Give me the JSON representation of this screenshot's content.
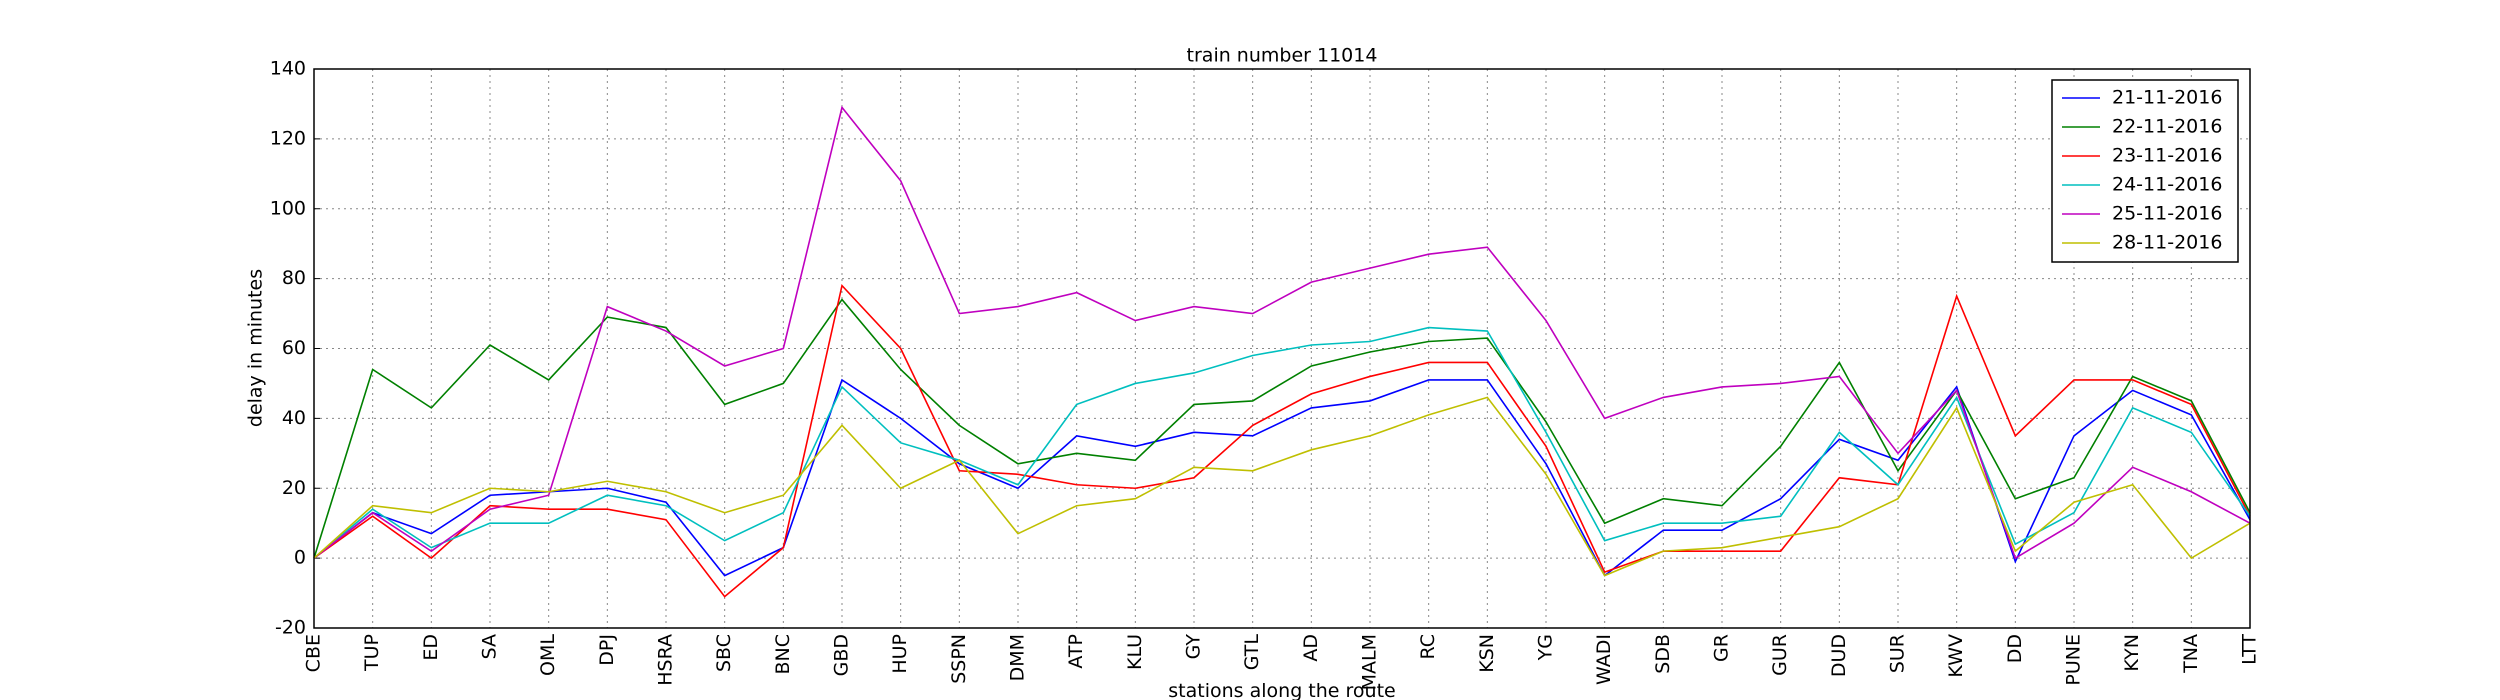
{
  "chart_data": {
    "type": "line",
    "title": "train number 11014",
    "x_label": "stations along the route",
    "y_label": "delay in minutes",
    "categories": [
      "CBE",
      "TUP",
      "ED",
      "SA",
      "OML",
      "DPJ",
      "HSRA",
      "SBC",
      "BNC",
      "GBD",
      "HUP",
      "SSPN",
      "DMM",
      "ATP",
      "KLU",
      "GY",
      "GTL",
      "AD",
      "MALM",
      "RC",
      "KSN",
      "YG",
      "WADI",
      "SDB",
      "GR",
      "GUR",
      "DUD",
      "SUR",
      "KWV",
      "DD",
      "PUNE",
      "KYN",
      "TNA",
      "LTT"
    ],
    "series": [
      {
        "name": "21-11-2016",
        "color": "#0000ff",
        "values": [
          0,
          13,
          7,
          18,
          19,
          20,
          16,
          -5,
          3,
          51,
          40,
          27,
          20,
          35,
          32,
          36,
          35,
          43,
          45,
          51,
          51,
          27,
          -5,
          8,
          8,
          17,
          34,
          28,
          49,
          -1,
          35,
          48,
          41,
          11
        ]
      },
      {
        "name": "22-11-2016",
        "color": "#008000",
        "values": [
          0,
          54,
          43,
          61,
          51,
          69,
          66,
          44,
          50,
          74,
          54,
          38,
          27,
          30,
          28,
          44,
          45,
          55,
          59,
          62,
          63,
          39,
          10,
          17,
          15,
          32,
          56,
          25,
          48,
          17,
          23,
          52,
          45,
          13
        ]
      },
      {
        "name": "23-11-2016",
        "color": "#ff0000",
        "values": [
          0,
          12,
          0,
          15,
          14,
          14,
          11,
          -11,
          3,
          78,
          60,
          25,
          24,
          21,
          20,
          23,
          38,
          47,
          52,
          56,
          56,
          32,
          -4,
          2,
          2,
          2,
          23,
          21,
          75,
          35,
          51,
          51,
          44,
          12
        ]
      },
      {
        "name": "24-11-2016",
        "color": "#00bfbf",
        "values": [
          0,
          14,
          3,
          10,
          10,
          18,
          15,
          5,
          13,
          49,
          33,
          28,
          21,
          44,
          50,
          53,
          58,
          61,
          62,
          66,
          65,
          36,
          5,
          10,
          10,
          12,
          36,
          21,
          46,
          4,
          13,
          43,
          36,
          12
        ]
      },
      {
        "name": "25-11-2016",
        "color": "#bf00bf",
        "values": [
          0,
          13,
          2,
          14,
          18,
          72,
          65,
          55,
          60,
          129,
          108,
          70,
          72,
          76,
          68,
          72,
          70,
          79,
          83,
          87,
          89,
          68,
          40,
          46,
          49,
          50,
          52,
          30,
          48,
          0,
          10,
          26,
          19,
          10
        ]
      },
      {
        "name": "28-11-2016",
        "color": "#bfbf00",
        "values": [
          0,
          15,
          13,
          20,
          19,
          22,
          19,
          13,
          18,
          38,
          20,
          28,
          7,
          15,
          17,
          26,
          25,
          31,
          35,
          41,
          46,
          24,
          -5,
          2,
          3,
          6,
          9,
          17,
          43,
          2,
          16,
          21,
          0,
          10
        ]
      }
    ],
    "ylim": [
      -20,
      140
    ],
    "yticks": [
      -20,
      0,
      20,
      40,
      60,
      80,
      100,
      120,
      140
    ],
    "grid": true,
    "legend": "upper right"
  }
}
